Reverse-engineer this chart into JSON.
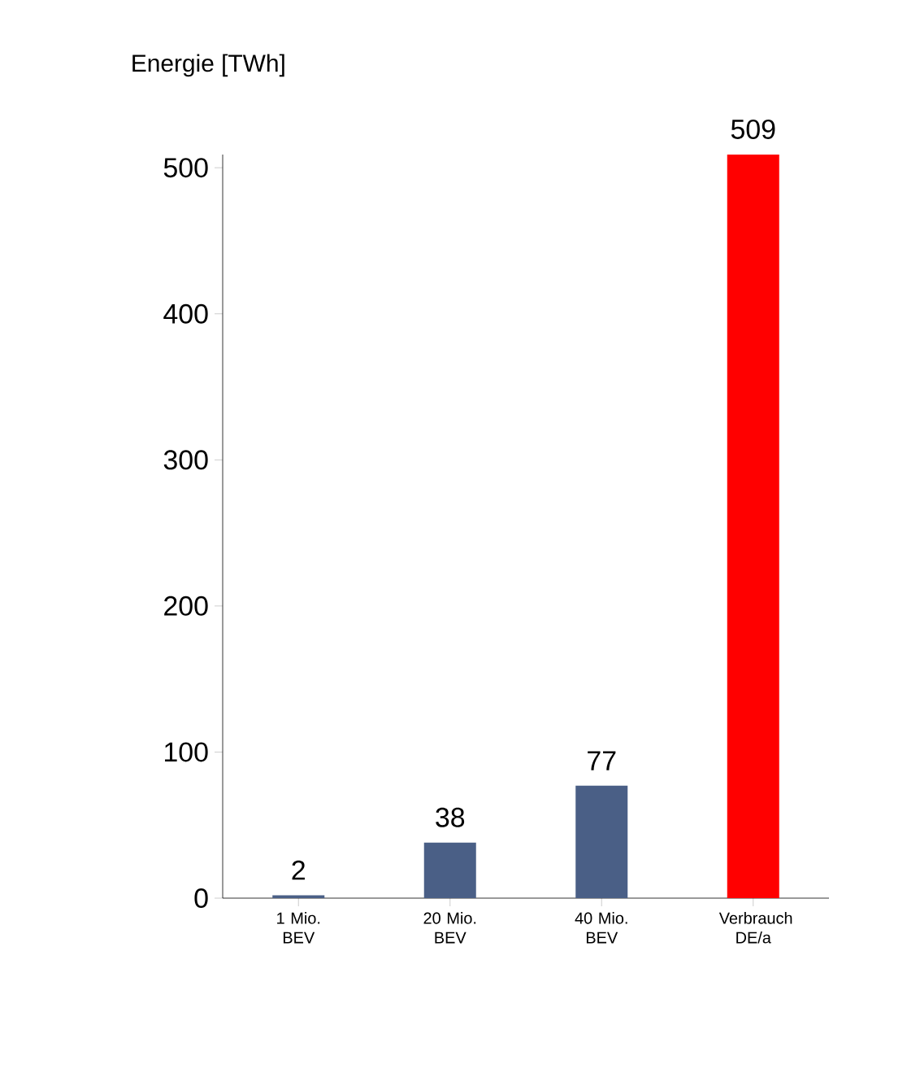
{
  "chart_data": {
    "type": "bar",
    "ylabel": "Energie [TWh]",
    "categories": [
      "1 Mio. BEV",
      "20 Mio. BEV",
      "40 Mio. BEV",
      "Verbrauch DE/a"
    ],
    "values": [
      2,
      38,
      77,
      509
    ],
    "colors": [
      "#4a5f86",
      "#4a5f86",
      "#4a5f86",
      "#ff0000"
    ],
    "ylim": [
      0,
      509
    ],
    "yticks": [
      0,
      100,
      200,
      300,
      400,
      500
    ],
    "data_labels": true
  }
}
